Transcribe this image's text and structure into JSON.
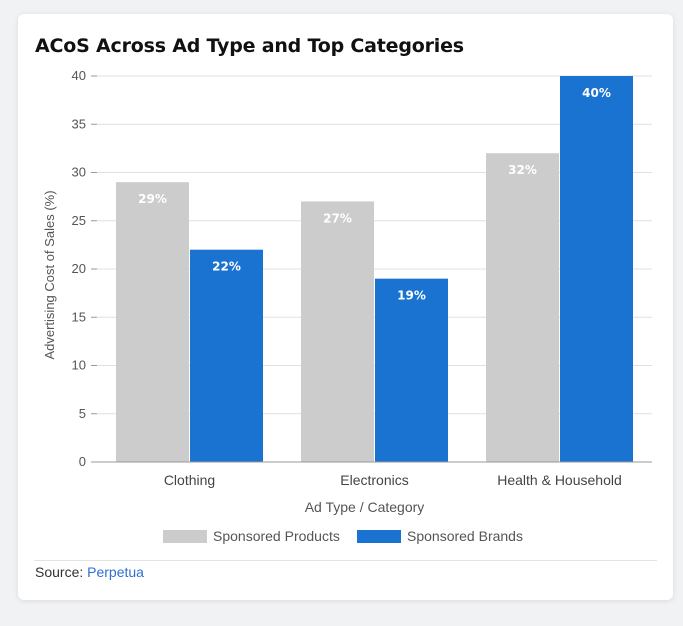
{
  "chart_data": {
    "type": "bar",
    "title": "ACoS Across Ad Type and Top Categories",
    "xlabel": "Ad Type / Category",
    "ylabel": "Advertising Cost of Sales (%)",
    "ylim": [
      0,
      40
    ],
    "yticks": [
      0,
      5,
      10,
      15,
      20,
      25,
      30,
      35,
      40
    ],
    "grid": true,
    "legend_position": "bottom-center",
    "categories": [
      "Clothing",
      "Electronics",
      "Health & Household"
    ],
    "series": [
      {
        "name": "Sponsored Products",
        "values": [
          29,
          27,
          32
        ],
        "labels": [
          "29%",
          "27%",
          "32%"
        ],
        "color": "#cccccc"
      },
      {
        "name": "Sponsored Brands",
        "values": [
          22,
          19,
          40
        ],
        "labels": [
          "22%",
          "19%",
          "40%"
        ],
        "color": "#1a73d0"
      }
    ]
  },
  "source": {
    "label": "Source:",
    "name": "Perpetua"
  },
  "colors": {
    "label_text": "#ffffff",
    "axis_text": "#555555",
    "grid": "#e0e0e0",
    "link": "#2f6fd1"
  }
}
